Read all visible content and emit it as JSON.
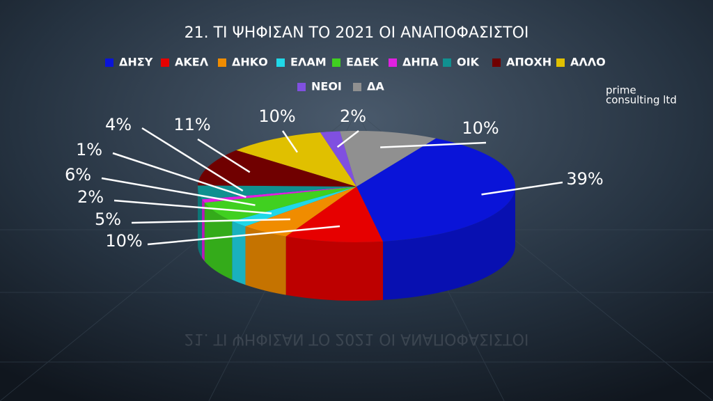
{
  "chart_data": {
    "type": "pie",
    "title": "21. ΤΙ ΨΗΦΙΣΑΝ ΤΟ 2021 ΟΙ ΑΝΑΠΟΦΑΣΙΣΤΟΙ",
    "categories": [
      "ΔΗΣΥ",
      "ΑΚΕΛ",
      "ΔΗΚΟ",
      "ΕΛΑΜ",
      "ΕΔΕΚ",
      "ΔΗΠΑ",
      "ΟΙΚ",
      "ΑΠΟΧΗ",
      "ΑΛΛΟ",
      "ΝΕΟΙ",
      "ΔΑ"
    ],
    "values": [
      39,
      10,
      5,
      2,
      6,
      1,
      4,
      11,
      10,
      2,
      10
    ],
    "value_labels": [
      "39%",
      "10%",
      "5%",
      "2%",
      "6%",
      "1%",
      "4%",
      "11%",
      "10%",
      "2%",
      "10%"
    ],
    "colors": [
      "#0a14d8",
      "#e60000",
      "#f08c00",
      "#20d8e8",
      "#40d020",
      "#e020e0",
      "#109090",
      "#700000",
      "#e0c000",
      "#8050e0",
      "#909090"
    ],
    "legend": "top"
  },
  "watermark": {
    "line1": "prime",
    "line2": "consulting ltd"
  }
}
